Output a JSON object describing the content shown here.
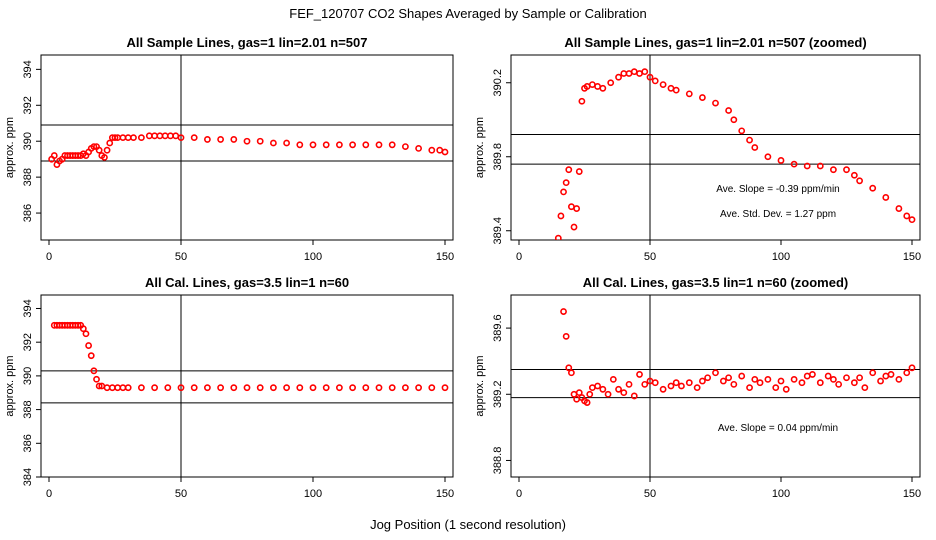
{
  "figure": {
    "title": "FEF_120707  CO2 Shapes Averaged by Sample or Calibration",
    "xlabel": "Jog Position (1 second resolution)"
  },
  "colors": {
    "points": "#ff0000",
    "axes": "#000000",
    "background": "#ffffff"
  },
  "chart_data": [
    {
      "type": "scatter",
      "title": "All Sample Lines, gas=1 lin=2.01 n=507",
      "xlabel": "",
      "ylabel": "approx. ppm",
      "xlim": [
        0,
        150
      ],
      "ylim": [
        384.5,
        394.8
      ],
      "xticks": [
        0,
        50,
        100,
        150
      ],
      "yticks": [
        386,
        388,
        390,
        392,
        394
      ],
      "hlines": [
        390.9,
        388.9
      ],
      "vline": 50,
      "annotations": [],
      "x": [
        1,
        2,
        3,
        4,
        5,
        6,
        7,
        8,
        9,
        10,
        11,
        12,
        13,
        14,
        15,
        16,
        17,
        18,
        19,
        20,
        21,
        22,
        23,
        24,
        25,
        26,
        28,
        30,
        32,
        35,
        38,
        40,
        42,
        44,
        46,
        48,
        50,
        55,
        60,
        65,
        70,
        75,
        80,
        85,
        90,
        95,
        100,
        105,
        110,
        115,
        120,
        125,
        130,
        135,
        140,
        145,
        148,
        150
      ],
      "y": [
        389.0,
        389.2,
        388.7,
        388.9,
        389.0,
        389.2,
        389.2,
        389.2,
        389.2,
        389.2,
        389.2,
        389.2,
        389.3,
        389.2,
        389.4,
        389.6,
        389.7,
        389.7,
        389.5,
        389.2,
        389.1,
        389.5,
        389.9,
        390.2,
        390.2,
        390.2,
        390.2,
        390.2,
        390.2,
        390.2,
        390.3,
        390.3,
        390.3,
        390.3,
        390.3,
        390.3,
        390.2,
        390.2,
        390.1,
        390.1,
        390.1,
        390.0,
        390.0,
        389.9,
        389.9,
        389.8,
        389.8,
        389.8,
        389.8,
        389.8,
        389.8,
        389.8,
        389.8,
        389.7,
        389.6,
        389.5,
        389.5,
        389.4
      ]
    },
    {
      "type": "scatter",
      "title": "All Sample Lines, gas=1 lin=2.01 n=507 (zoomed)",
      "xlabel": "",
      "ylabel": "approx. ppm",
      "xlim": [
        0,
        150
      ],
      "ylim": [
        389.35,
        390.35
      ],
      "xticks": [
        0,
        50,
        100,
        150
      ],
      "yticks": [
        389.4,
        389.8,
        390.2
      ],
      "hlines": [
        389.92,
        389.76
      ],
      "vline": 50,
      "annotations": [
        "Ave. Slope =  -0.39  ppm/min",
        "Ave. Std. Dev. =  1.27  ppm"
      ],
      "x": [
        15,
        16,
        17,
        18,
        19,
        20,
        21,
        22,
        23,
        24,
        25,
        26,
        28,
        30,
        32,
        35,
        38,
        40,
        42,
        44,
        46,
        48,
        50,
        52,
        55,
        58,
        60,
        65,
        70,
        75,
        80,
        82,
        85,
        88,
        90,
        95,
        100,
        105,
        110,
        115,
        120,
        125,
        128,
        130,
        135,
        140,
        145,
        148,
        150
      ],
      "y": [
        389.36,
        389.48,
        389.61,
        389.66,
        389.73,
        389.53,
        389.42,
        389.52,
        389.72,
        390.1,
        390.17,
        390.18,
        390.19,
        390.18,
        390.17,
        390.2,
        390.23,
        390.25,
        390.25,
        390.26,
        390.25,
        390.26,
        390.23,
        390.21,
        390.19,
        390.17,
        390.16,
        390.14,
        390.12,
        390.09,
        390.05,
        390.0,
        389.94,
        389.89,
        389.85,
        389.8,
        389.78,
        389.76,
        389.75,
        389.75,
        389.73,
        389.73,
        389.7,
        389.67,
        389.63,
        389.58,
        389.52,
        389.48,
        389.46
      ]
    },
    {
      "type": "scatter",
      "title": "All Cal. Lines, gas=3.5 lin=1 n=60",
      "xlabel": "",
      "ylabel": "approx. ppm",
      "xlim": [
        0,
        150
      ],
      "ylim": [
        384,
        394.8
      ],
      "xticks": [
        0,
        50,
        100,
        150
      ],
      "yticks": [
        384,
        386,
        388,
        390,
        392,
        394
      ],
      "hlines": [
        390.3,
        388.4
      ],
      "vline": 50,
      "annotations": [],
      "x": [
        2,
        3,
        4,
        5,
        6,
        7,
        8,
        9,
        10,
        11,
        12,
        13,
        14,
        15,
        16,
        17,
        18,
        19,
        20,
        22,
        24,
        26,
        28,
        30,
        35,
        40,
        45,
        50,
        55,
        60,
        65,
        70,
        75,
        80,
        85,
        90,
        95,
        100,
        105,
        110,
        115,
        120,
        125,
        130,
        135,
        140,
        145,
        150
      ],
      "y": [
        393.0,
        393.0,
        393.0,
        393.0,
        393.0,
        393.0,
        393.0,
        393.0,
        393.0,
        393.0,
        393.0,
        392.8,
        392.5,
        391.8,
        391.2,
        390.3,
        389.8,
        389.4,
        389.4,
        389.3,
        389.3,
        389.3,
        389.3,
        389.3,
        389.3,
        389.3,
        389.3,
        389.3,
        389.3,
        389.3,
        389.3,
        389.3,
        389.3,
        389.3,
        389.3,
        389.3,
        389.3,
        389.3,
        389.3,
        389.3,
        389.3,
        389.3,
        389.3,
        389.3,
        389.3,
        389.3,
        389.3,
        389.3
      ]
    },
    {
      "type": "scatter",
      "title": "All Cal. Lines, gas=3.5 lin=1 n=60 (zoomed)",
      "xlabel": "",
      "ylabel": "approx. ppm",
      "xlim": [
        0,
        150
      ],
      "ylim": [
        388.7,
        389.8
      ],
      "xticks": [
        0,
        50,
        100,
        150
      ],
      "yticks": [
        388.8,
        389.2,
        389.6
      ],
      "hlines": [
        389.35,
        389.18
      ],
      "vline": 50,
      "annotations": [
        "Ave. Slope =  0.04  ppm/min"
      ],
      "x": [
        17,
        18,
        19,
        20,
        21,
        22,
        23,
        24,
        25,
        26,
        27,
        28,
        30,
        32,
        34,
        36,
        38,
        40,
        42,
        44,
        46,
        48,
        50,
        52,
        55,
        58,
        60,
        62,
        65,
        68,
        70,
        72,
        75,
        78,
        80,
        82,
        85,
        88,
        90,
        92,
        95,
        98,
        100,
        102,
        105,
        108,
        110,
        112,
        115,
        118,
        120,
        122,
        125,
        128,
        130,
        132,
        135,
        138,
        140,
        142,
        145,
        148,
        150
      ],
      "y": [
        389.7,
        389.55,
        389.36,
        389.33,
        389.2,
        389.17,
        389.21,
        389.18,
        389.16,
        389.15,
        389.2,
        389.24,
        389.25,
        389.23,
        389.2,
        389.29,
        389.23,
        389.21,
        389.26,
        389.19,
        389.32,
        389.26,
        389.28,
        389.27,
        389.23,
        389.25,
        389.27,
        389.25,
        389.27,
        389.24,
        389.28,
        389.3,
        389.33,
        389.28,
        389.3,
        389.26,
        389.31,
        389.24,
        389.29,
        389.27,
        389.29,
        389.24,
        389.28,
        389.23,
        389.29,
        389.27,
        389.31,
        389.32,
        389.27,
        389.31,
        389.29,
        389.26,
        389.3,
        389.27,
        389.3,
        389.24,
        389.33,
        389.28,
        389.31,
        389.32,
        389.29,
        389.33,
        389.36
      ]
    }
  ]
}
